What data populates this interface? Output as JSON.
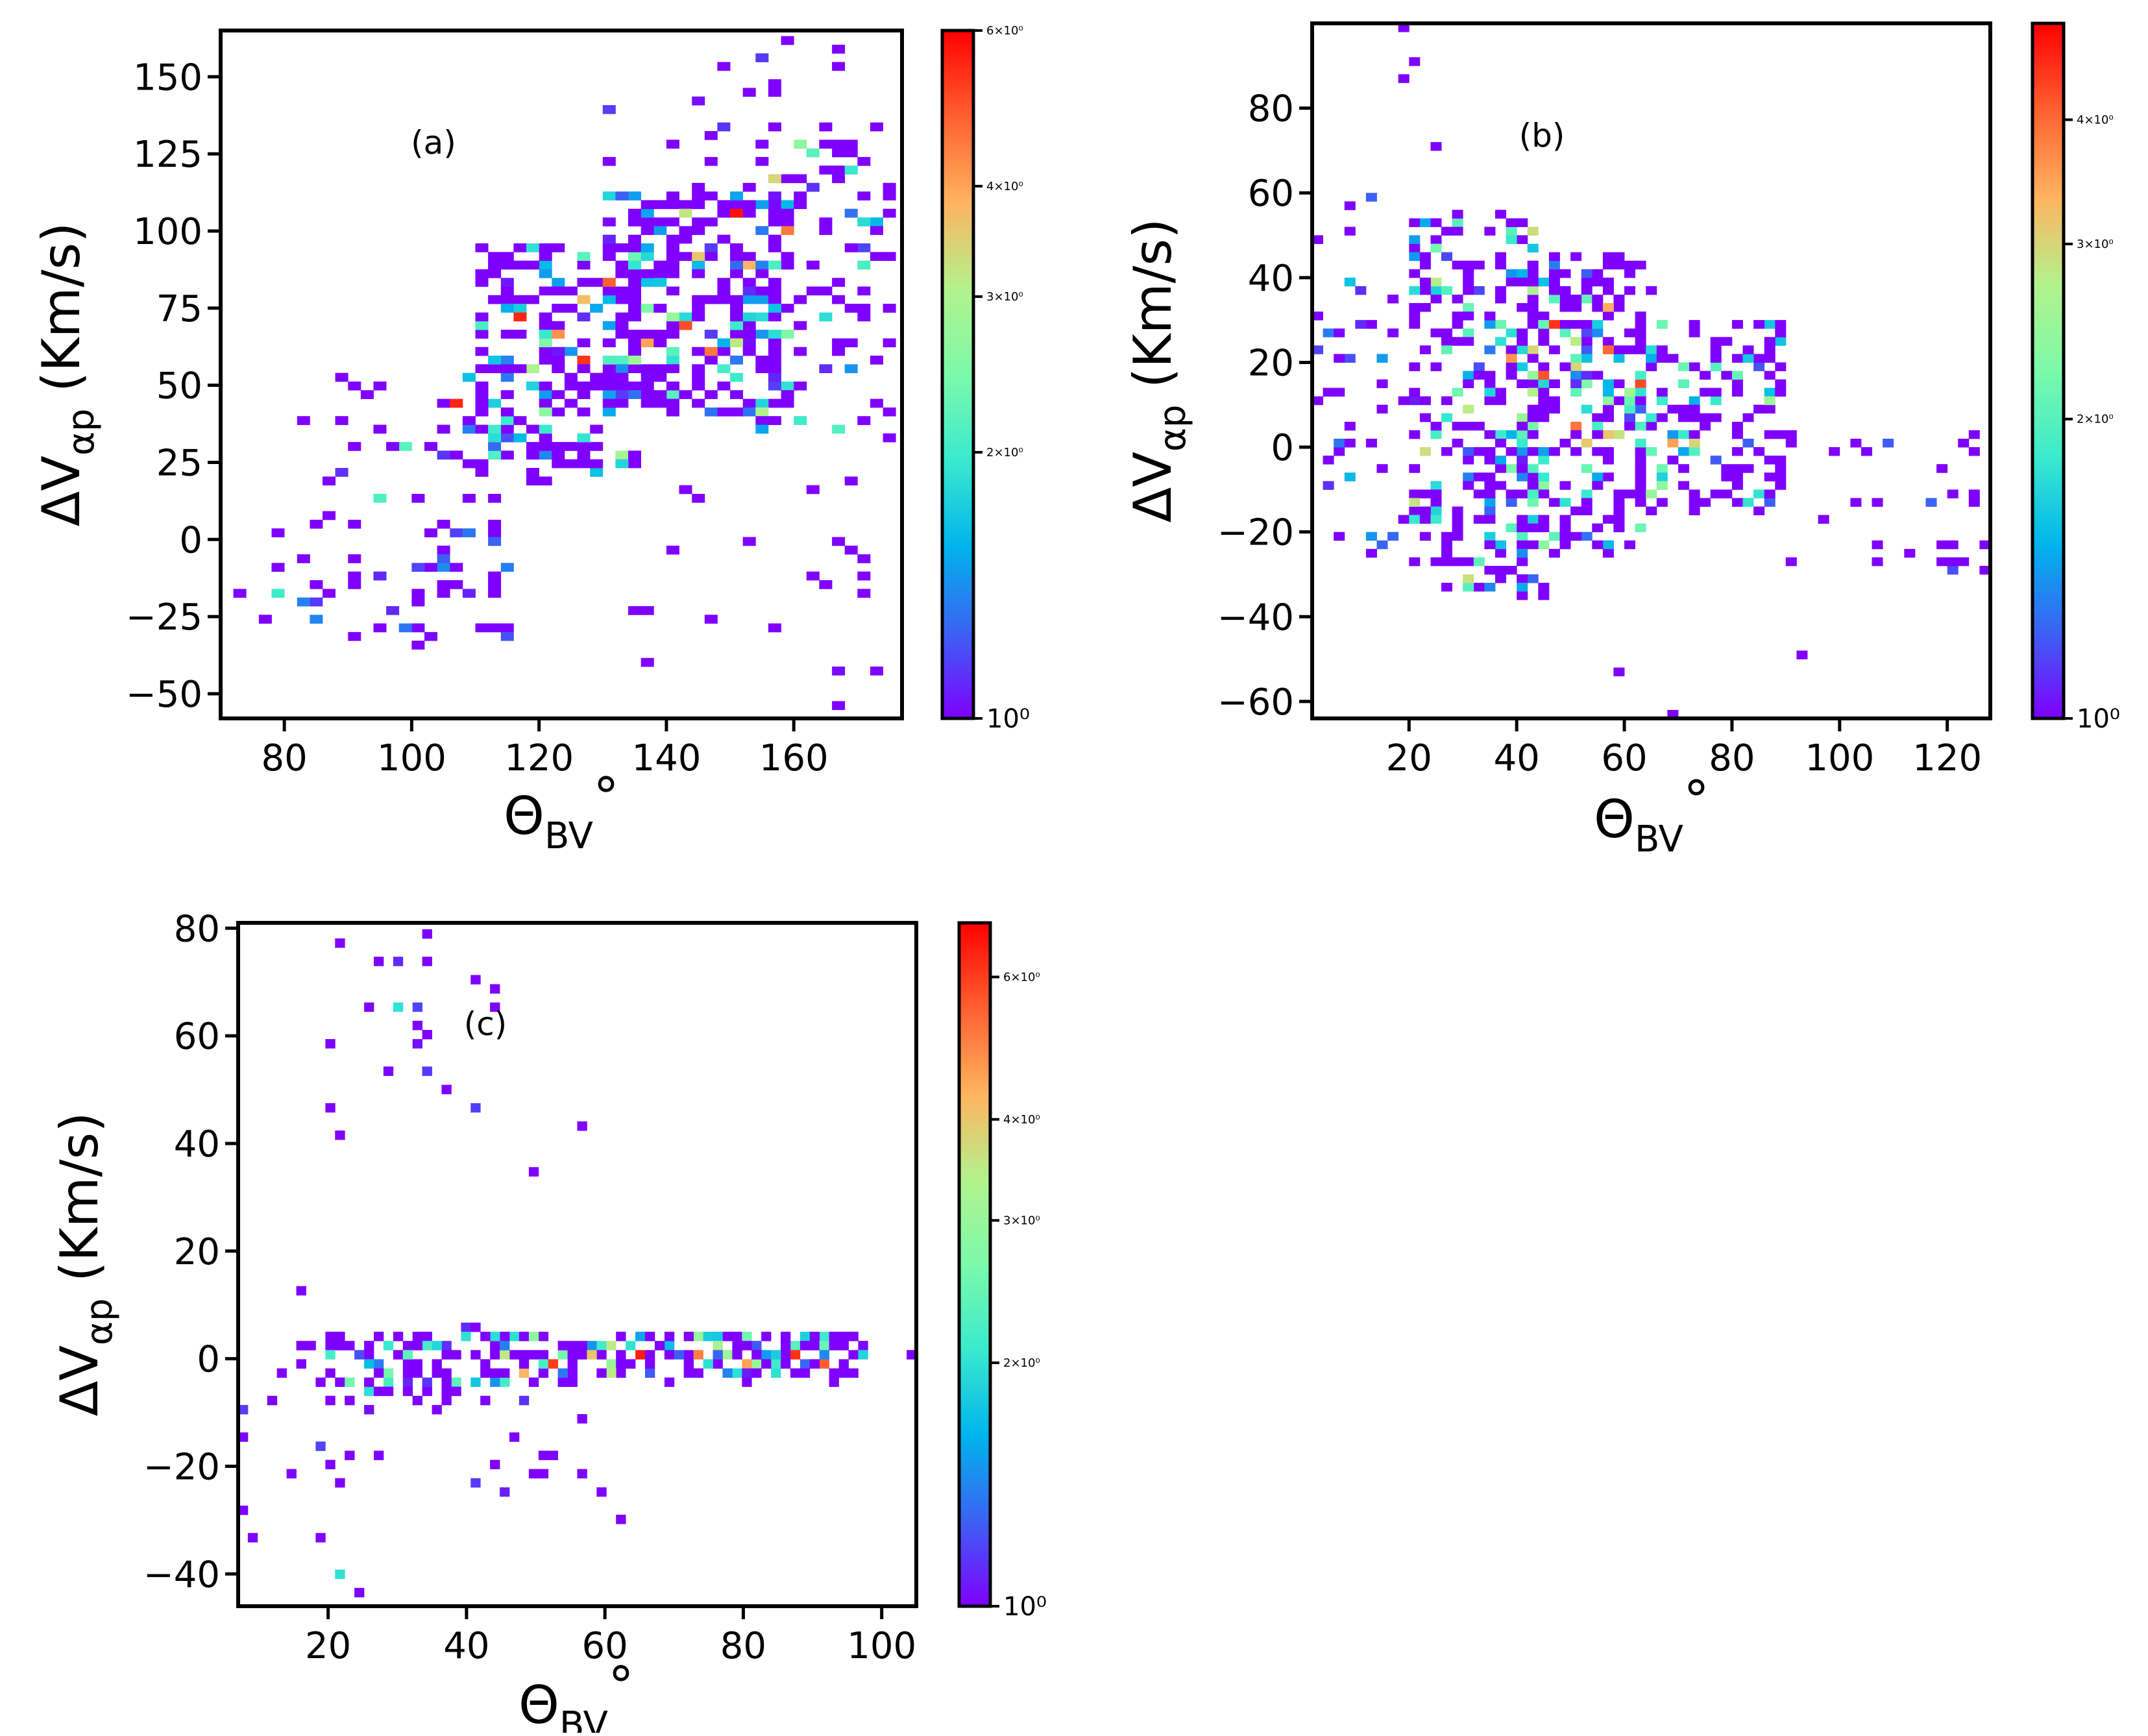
{
  "colormap": [
    "#7f00ff",
    "#3b62f4",
    "#00b4ec",
    "#3aeace",
    "#7cf9aa",
    "#b3f28c",
    "#ffb360",
    "#ff6030",
    "#ff0000"
  ],
  "chart_data": [
    {
      "type": "heatmap",
      "panel_label": "(a)",
      "xlabel": "Θ",
      "xlabel_sub": "BV",
      "xlabel_sup": "°",
      "ylabel": "ΔV",
      "ylabel_sub": "αp",
      "ylabel_unit": " (Km/s)",
      "xlim": [
        70,
        177
      ],
      "ylim": [
        -58,
        165
      ],
      "xticks": [
        80,
        100,
        120,
        140,
        160
      ],
      "yticks": [
        -50,
        -25,
        0,
        25,
        50,
        75,
        100,
        125,
        150
      ],
      "ytick_labels": [
        "−50",
        "−25",
        "0",
        "25",
        "50",
        "75",
        "100",
        "125",
        "150"
      ],
      "bin_x": 2,
      "bin_y": 2.8,
      "colorbar": {
        "scale": "log",
        "min": 1,
        "max": 6,
        "ticks": [
          1,
          2,
          3,
          4,
          6
        ],
        "labels": [
          "10⁰",
          "2×10⁰",
          "3×10⁰",
          "4×10⁰",
          "6×10⁰"
        ]
      },
      "clusters": [
        {
          "x": [
            70,
            92
          ],
          "y": [
            -28,
            12
          ],
          "n": 12,
          "cmax": 1.4
        },
        {
          "x": [
            88,
            115
          ],
          "y": [
            -35,
            60
          ],
          "n": 75,
          "cmax": 1.8
        },
        {
          "x": [
            110,
            135
          ],
          "y": [
            20,
            95
          ],
          "n": 200,
          "cmax": 3
        },
        {
          "x": [
            130,
            160
          ],
          "y": [
            40,
            115
          ],
          "n": 260,
          "cmax": 3.3
        },
        {
          "x": [
            150,
            177
          ],
          "y": [
            30,
            130
          ],
          "n": 90,
          "cmax": 2.2
        },
        {
          "x": [
            135,
            175
          ],
          "y": [
            -55,
            20
          ],
          "n": 22,
          "cmax": 1.2
        },
        {
          "x": [
            130,
            175
          ],
          "y": [
            115,
            162
          ],
          "n": 22,
          "cmax": 1.4
        }
      ],
      "points": [
        [
          116,
          71,
          5.5
        ],
        [
          107,
          43,
          5.5
        ],
        [
          126,
          59,
          5.3
        ],
        [
          151,
          107,
          5.8
        ],
        [
          142,
          70,
          5.0
        ],
        [
          131,
          83,
          4.8
        ],
        [
          147,
          60,
          4.5
        ],
        [
          159,
          100,
          4.5
        ],
        [
          122,
          67,
          4.2
        ],
        [
          137,
          65,
          4.0
        ],
        [
          153,
          89,
          3.8
        ],
        [
          144,
          92,
          3.6
        ],
        [
          127,
          79,
          3.7
        ],
        [
          156,
          116,
          3.4
        ],
        [
          143,
          107,
          3.2
        ],
        [
          119,
          55,
          3.0
        ],
        [
          161,
          128,
          2.6
        ],
        [
          99,
          31,
          2.2
        ],
        [
          95,
          13,
          2.1
        ],
        [
          79,
          -17,
          2.0
        ],
        [
          158,
          162,
          1.0
        ],
        [
          82,
          38,
          1.0
        ],
        [
          176,
          134,
          1.0
        ],
        [
          86,
          19,
          1.0
        ]
      ]
    },
    {
      "type": "heatmap",
      "panel_label": "(b)",
      "xlabel": "Θ",
      "xlabel_sub": "BV",
      "xlabel_sup": "°",
      "ylabel": "ΔV",
      "ylabel_sub": "αp",
      "ylabel_unit": " (Km/s)",
      "xlim": [
        2,
        128
      ],
      "ylim": [
        -64,
        100
      ],
      "xticks": [
        20,
        40,
        60,
        80,
        100,
        120
      ],
      "yticks": [
        -60,
        -40,
        -20,
        0,
        20,
        40,
        60,
        80
      ],
      "ytick_labels": [
        "−60",
        "−40",
        "−20",
        "0",
        "20",
        "40",
        "60",
        "80"
      ],
      "bin_x": 2,
      "bin_y": 2,
      "colorbar": {
        "scale": "log",
        "min": 1,
        "max": 5,
        "ticks": [
          1,
          2,
          3,
          4
        ],
        "labels": [
          "10⁰",
          "2×10⁰",
          "3×10⁰",
          "4×10⁰"
        ]
      },
      "clusters": [
        {
          "x": [
            2,
            22
          ],
          "y": [
            -25,
            65
          ],
          "n": 45,
          "cmax": 1.6
        },
        {
          "x": [
            20,
            45
          ],
          "y": [
            -35,
            55
          ],
          "n": 240,
          "cmax": 3
        },
        {
          "x": [
            40,
            65
          ],
          "y": [
            -25,
            45
          ],
          "n": 230,
          "cmax": 3.2
        },
        {
          "x": [
            62,
            90
          ],
          "y": [
            -15,
            30
          ],
          "n": 140,
          "cmax": 2.6
        },
        {
          "x": [
            85,
            128
          ],
          "y": [
            -30,
            5
          ],
          "n": 28,
          "cmax": 1.3
        }
      ],
      "points": [
        [
          47,
          28,
          4.5
        ],
        [
          44,
          16,
          4.2
        ],
        [
          56,
          22,
          4.0
        ],
        [
          62,
          15,
          4.3
        ],
        [
          51,
          4,
          3.9
        ],
        [
          38,
          20,
          3.6
        ],
        [
          69,
          0,
          3.5
        ],
        [
          57,
          33,
          3.4
        ],
        [
          73,
          1,
          3.0
        ],
        [
          31,
          8,
          2.8
        ],
        [
          19,
          98,
          1.0
        ],
        [
          21,
          91,
          1.0
        ],
        [
          18,
          86,
          1.0
        ],
        [
          24,
          70,
          1.0
        ],
        [
          58,
          -54,
          1.0
        ],
        [
          93,
          -50,
          1.0
        ],
        [
          69,
          -64,
          1.0
        ],
        [
          127,
          -24,
          1.0
        ],
        [
          119,
          -27,
          1.0
        ]
      ]
    },
    {
      "type": "heatmap",
      "panel_label": "(c)",
      "xlabel": "Θ",
      "xlabel_sub": "BV",
      "xlabel_sup": "°",
      "ylabel": "ΔV",
      "ylabel_sub": "αp",
      "ylabel_unit": " (Km/s)",
      "xlim": [
        7,
        105
      ],
      "ylim": [
        -46,
        81
      ],
      "xticks": [
        20,
        40,
        60,
        80,
        100
      ],
      "yticks": [
        -40,
        -20,
        0,
        20,
        40,
        60,
        80
      ],
      "ytick_labels": [
        "−40",
        "−20",
        "0",
        "20",
        "40",
        "60",
        "80"
      ],
      "bin_x": 1.4,
      "bin_y": 1.7,
      "colorbar": {
        "scale": "log",
        "min": 1,
        "max": 7,
        "ticks": [
          1,
          2,
          3,
          4,
          6
        ],
        "labels": [
          "10⁰",
          "2×10⁰",
          "3×10⁰",
          "4×10⁰",
          "6×10⁰"
        ]
      },
      "clusters": [
        {
          "x": [
            20,
            45
          ],
          "y": [
            -8,
            6
          ],
          "n": 75,
          "cmax": 2.6
        },
        {
          "x": [
            42,
            98
          ],
          "y": [
            -4,
            5
          ],
          "n": 190,
          "cmax": 3.5
        },
        {
          "x": [
            18,
            58
          ],
          "y": [
            -25,
            -6
          ],
          "n": 18,
          "cmax": 1.2
        },
        {
          "x": [
            7,
            24
          ],
          "y": [
            -35,
            15
          ],
          "n": 15,
          "cmax": 1.2
        },
        {
          "x": [
            20,
            45
          ],
          "y": [
            44,
            80
          ],
          "n": 18,
          "cmax": 1.2
        }
      ],
      "points": [
        [
          65,
          0,
          6.5
        ],
        [
          52,
          -1,
          6.0
        ],
        [
          87,
          1,
          6.2
        ],
        [
          92,
          -1,
          5.5
        ],
        [
          73,
          0,
          5.0
        ],
        [
          48,
          -2,
          4.2
        ],
        [
          58,
          1,
          4.0
        ],
        [
          80,
          -1,
          4.5
        ],
        [
          45,
          1,
          3.5
        ],
        [
          30,
          66,
          2.0
        ],
        [
          22,
          -40,
          2.0
        ],
        [
          28,
          -3,
          2.6
        ],
        [
          32,
          1,
          2.4
        ],
        [
          104,
          0,
          1.0
        ],
        [
          56,
          44,
          1.0
        ],
        [
          50,
          34,
          1.0
        ],
        [
          22,
          41,
          1.0
        ],
        [
          22,
          78,
          1.0
        ],
        [
          24,
          80,
          1.0
        ],
        [
          8,
          -29,
          1.0
        ],
        [
          25,
          -44,
          1.0
        ],
        [
          60,
          -24,
          1.0
        ],
        [
          62,
          -30,
          1.0
        ]
      ]
    }
  ]
}
